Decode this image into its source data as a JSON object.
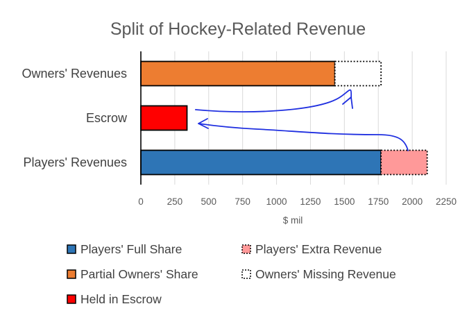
{
  "chart_data": {
    "type": "bar",
    "orientation": "horizontal",
    "stacked": true,
    "title": "Split of Hockey-Related Revenue",
    "xlabel": "$ mil",
    "ylabel": "",
    "xlim": [
      0,
      2250
    ],
    "xticks": [
      0,
      250,
      500,
      750,
      1000,
      1250,
      1500,
      1750,
      2000,
      2250
    ],
    "categories": [
      "Owners' Revenues",
      "Escrow",
      "Players' Revenues"
    ],
    "series": [
      {
        "name": "Players' Full Share",
        "color": "#2e75b6",
        "border": "solid",
        "values": [
          0,
          0,
          1770
        ]
      },
      {
        "name": "Players' Extra Revenue",
        "color": "#ff9999",
        "border": "dotted",
        "values": [
          0,
          0,
          340
        ]
      },
      {
        "name": "Partial Owners' Share",
        "color": "#ed7d31",
        "border": "solid",
        "values": [
          1430,
          0,
          0
        ]
      },
      {
        "name": "Owners' Missing Revenue",
        "color": "#ffffff",
        "border": "dotted",
        "values": [
          340,
          0,
          0
        ]
      },
      {
        "name": "Held in Escrow",
        "color": "#ff0000",
        "border": "solid",
        "values": [
          0,
          340,
          0
        ]
      }
    ],
    "grid": true,
    "legend": "bottom",
    "annotations": [
      "hand-drawn blue arrow from Players' Extra Revenue to Escrow",
      "hand-drawn blue arrow from Escrow to Owners' Missing Revenue"
    ]
  }
}
